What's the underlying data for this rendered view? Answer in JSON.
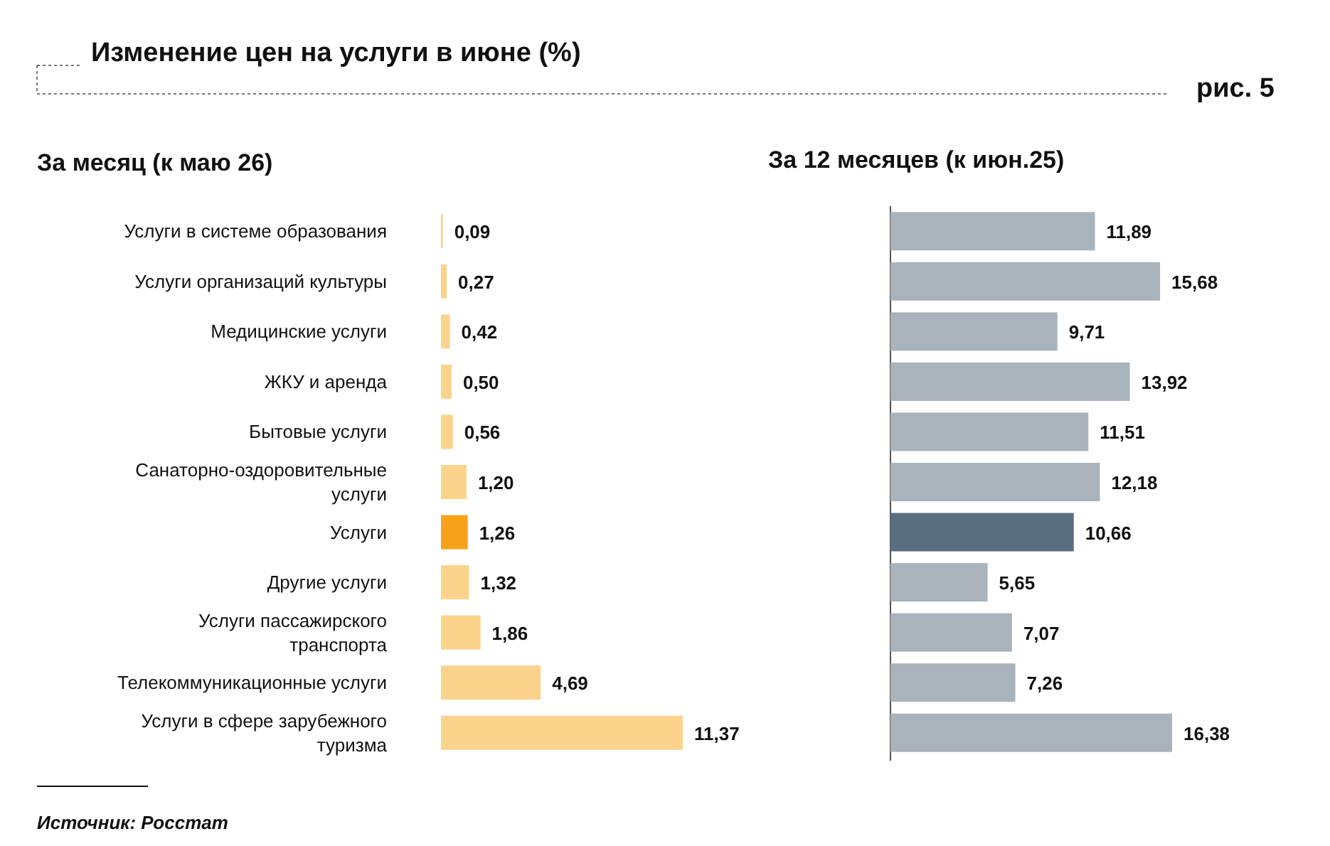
{
  "chart_data": [
    {
      "type": "bar",
      "orientation": "horizontal",
      "title": "Изменение цен на услуги в июне (%)",
      "subtitle": "За месяц (к маю 26)",
      "categories": [
        "Услуги в системе образования",
        "Услуги организаций культуры",
        "Медицинские услуги",
        "ЖКУ и аренда",
        "Бытовые услуги",
        "Санаторно-оздоровительные услуги",
        "Услуги",
        "Другие услуги",
        "Услуги пассажирского транспорта",
        "Телекоммуникационные услуги",
        "Услуги в сфере зарубежного туризма"
      ],
      "values": [
        0.09,
        0.27,
        0.42,
        0.5,
        0.56,
        1.2,
        1.26,
        1.32,
        1.86,
        4.69,
        11.37
      ],
      "value_labels": [
        "0,09",
        "0,27",
        "0,42",
        "0,50",
        "0,56",
        "1,20",
        "1,26",
        "1,32",
        "1,86",
        "4,69",
        "11,37"
      ],
      "colors": [
        "#fbd38d",
        "#fbd38d",
        "#fbd38d",
        "#fbd38d",
        "#fbd38d",
        "#fbd38d",
        "#f7a21b",
        "#fbd38d",
        "#fbd38d",
        "#fbd38d",
        "#fbd38d"
      ],
      "annotations": [
        "рис. 5",
        "Источник: Росстат"
      ]
    },
    {
      "type": "bar",
      "orientation": "horizontal",
      "title": "За 12 месяцев (к июн.25)",
      "categories": [
        null,
        null,
        null,
        null,
        null,
        null,
        null,
        null,
        null,
        null,
        null
      ],
      "values": [
        11.89,
        15.68,
        9.71,
        13.92,
        11.51,
        12.18,
        10.66,
        5.65,
        7.07,
        7.26,
        16.38
      ],
      "value_labels": [
        "11,89",
        "15,68",
        "9,71",
        "13,92",
        "11,51",
        "12,18",
        "10,66",
        "5,65",
        "7,07",
        "7,26",
        "16,38"
      ],
      "colors": [
        "#a9b3bc",
        "#a9b3bc",
        "#a9b3bc",
        "#a9b3bc",
        "#a9b3bc",
        "#a9b3bc",
        "#5a6e82",
        "#a9b3bc",
        "#a9b3bc",
        "#a9b3bc",
        "#a9b3bc"
      ]
    }
  ]
}
